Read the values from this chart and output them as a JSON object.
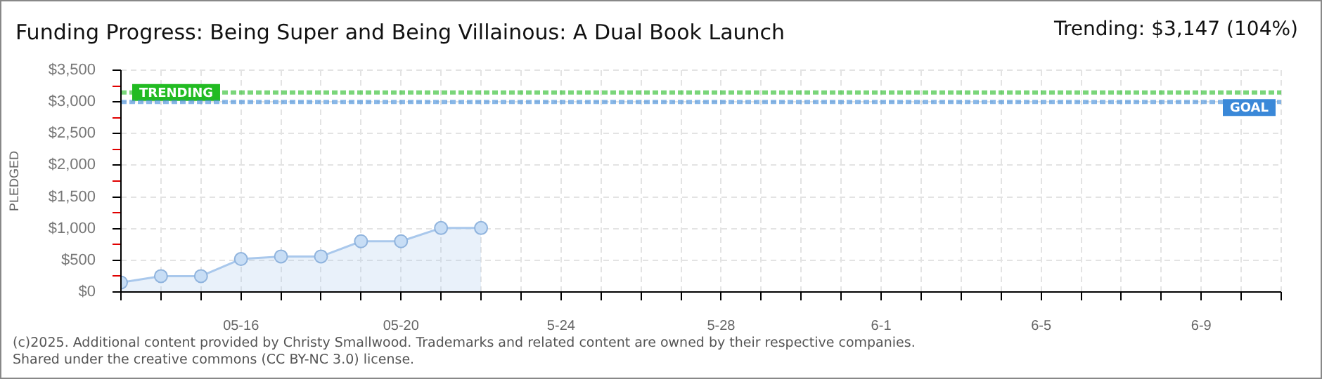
{
  "chart_data": {
    "type": "area",
    "title": "Funding Progress: Being Super and Being Villainous: A Dual Book Launch",
    "subtitle": "Trending: $3,147 (104%)",
    "ylabel": "PLEDGED",
    "x": [
      "--05-13",
      "--05-14",
      "--05-15",
      "--05-16",
      "--05-17",
      "--05-18",
      "--05-19",
      "--05-20",
      "--05-21",
      "--05-22"
    ],
    "values": [
      150,
      250,
      250,
      520,
      560,
      560,
      800,
      800,
      1010,
      1010
    ],
    "color": "#a9c8ec",
    "marker": "circle",
    "grid": true,
    "xlim": [
      "--05-13",
      "--06-11"
    ],
    "xticks": [
      {
        "value": "--05-13",
        "label": null
      },
      {
        "value": "--05-14",
        "label": null
      },
      {
        "value": "--05-15",
        "label": null
      },
      {
        "value": "--05-16",
        "label": "05-16"
      },
      {
        "value": "--05-17",
        "label": null
      },
      {
        "value": "--05-18",
        "label": null
      },
      {
        "value": "--05-19",
        "label": null
      },
      {
        "value": "--05-20",
        "label": "05-20"
      },
      {
        "value": "--05-21",
        "label": null
      },
      {
        "value": "--05-22",
        "label": null
      },
      {
        "value": "--05-23",
        "label": null
      },
      {
        "value": "--05-24",
        "label": "5-24"
      },
      {
        "value": "--05-25",
        "label": null
      },
      {
        "value": "--05-26",
        "label": null
      },
      {
        "value": "--05-27",
        "label": null
      },
      {
        "value": "--05-28",
        "label": "5-28"
      },
      {
        "value": "--05-29",
        "label": null
      },
      {
        "value": "--05-30",
        "label": null
      },
      {
        "value": "--05-31",
        "label": null
      },
      {
        "value": "--06-01",
        "label": "6-1"
      },
      {
        "value": "--06-02",
        "label": null
      },
      {
        "value": "--06-03",
        "label": null
      },
      {
        "value": "--06-04",
        "label": null
      },
      {
        "value": "--06-05",
        "label": "6-5"
      },
      {
        "value": "--06-06",
        "label": null
      },
      {
        "value": "--06-07",
        "label": null
      },
      {
        "value": "--06-08",
        "label": null
      },
      {
        "value": "--06-09",
        "label": "6-9"
      },
      {
        "value": "--06-10",
        "label": null
      },
      {
        "value": "--06-11",
        "label": null
      }
    ],
    "ylim": [
      0,
      3500
    ],
    "yticks": [
      {
        "value": 0,
        "label": "$0"
      },
      {
        "value": 250,
        "label": null
      },
      {
        "value": 500,
        "label": "$500"
      },
      {
        "value": 750,
        "label": null
      },
      {
        "value": 1000,
        "label": "$1,000"
      },
      {
        "value": 1250,
        "label": null
      },
      {
        "value": 1500,
        "label": "$1,500"
      },
      {
        "value": 1750,
        "label": null
      },
      {
        "value": 2000,
        "label": "$2,000"
      },
      {
        "value": 2250,
        "label": null
      },
      {
        "value": 2500,
        "label": "$2,500"
      },
      {
        "value": 2750,
        "label": null
      },
      {
        "value": 3000,
        "label": "$3,000"
      },
      {
        "value": 3250,
        "label": null
      },
      {
        "value": 3500,
        "label": "$3,500"
      }
    ],
    "ref_lines": [
      {
        "axis": "y",
        "value": 3147,
        "label": "TRENDING",
        "color": "#22bb22",
        "line_style": "dashed"
      },
      {
        "axis": "y",
        "value": 3000,
        "label": "GOAL",
        "color": "#3a88d8",
        "line_style": "dashed"
      }
    ],
    "annotations": [
      "(c)2025. Additional content provided by Christy Smallwood. Trademarks and related content are owned by their respective companies.",
      "Shared under the creative commons (CC BY-NC 3.0) license."
    ]
  }
}
